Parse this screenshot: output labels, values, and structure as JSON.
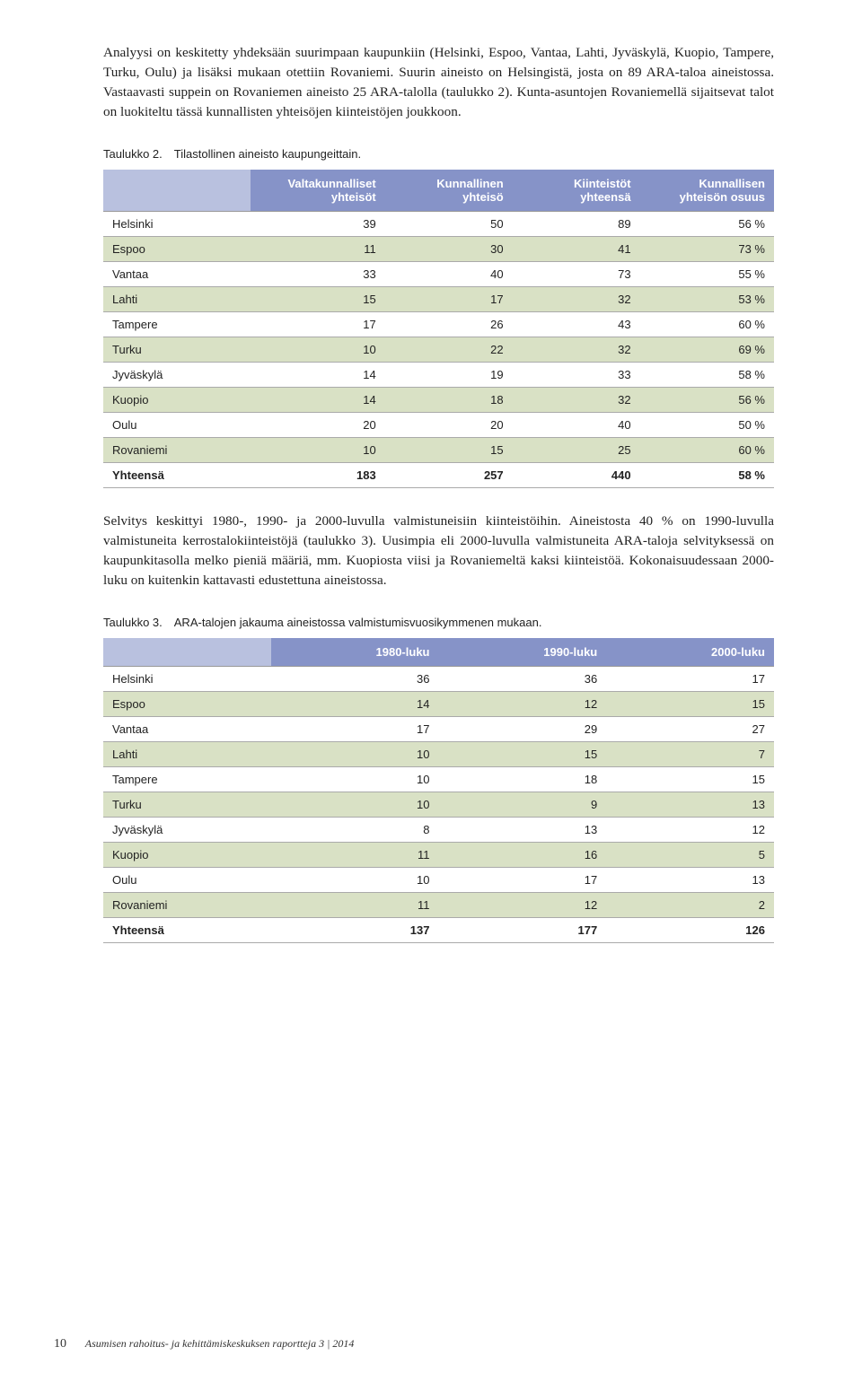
{
  "paragraphs": {
    "p1": "Analyysi on keskitetty yhdeksään suurimpaan kaupunkiin (Helsinki, Espoo, Vantaa, Lahti, Jyväskylä, Kuopio, Tampere, Turku, Oulu) ja lisäksi mukaan otettiin Rovaniemi. Suurin aineisto on Helsingistä, josta on 89 ARA-taloa aineistossa. Vastaavasti suppein on Rovaniemen aineisto 25 ARA-talolla (taulukko 2). Kunta-asuntojen Rovaniemellä sijaitsevat talot on luokiteltu tässä kunnallisten yhteisöjen kiinteistöjen joukkoon.",
    "p2": "Selvitys keskittyi 1980-, 1990- ja 2000-luvulla valmistuneisiin kiinteistöihin. Aineistosta 40 % on 1990-luvulla valmistuneita kerrostalokiinteistöjä (taulukko 3). Uusimpia eli 2000-luvulla valmistuneita ARA-taloja selvityksessä on kaupunkitasolla melko pieniä määriä, mm. Kuopiosta viisi ja Rovaniemeltä kaksi kiinteistöä. Kokonaisuudessaan 2000-luku on kuitenkin kattavasti edustettuna aineistossa."
  },
  "table2": {
    "caption": "Taulukko 2. Tilastollinen aineisto kaupungeittain.",
    "columns": [
      "",
      "Valtakunnalli­set yhteisöt",
      "Kunnallinen yhteisö",
      "Kiinteistöt yhteensä",
      "Kunnallisen yhteisön osuus"
    ],
    "header_bg": "#8693c8",
    "corner_bg": "#b9c1df",
    "row_bg_even": "#d9e1c5",
    "row_bg_odd": "#ffffff",
    "col_widths": [
      "22%",
      "20%",
      "19%",
      "19%",
      "20%"
    ],
    "rows": [
      [
        "Helsinki",
        "39",
        "50",
        "89",
        "56 %"
      ],
      [
        "Espoo",
        "11",
        "30",
        "41",
        "73 %"
      ],
      [
        "Vantaa",
        "33",
        "40",
        "73",
        "55 %"
      ],
      [
        "Lahti",
        "15",
        "17",
        "32",
        "53 %"
      ],
      [
        "Tampere",
        "17",
        "26",
        "43",
        "60 %"
      ],
      [
        "Turku",
        "10",
        "22",
        "32",
        "69 %"
      ],
      [
        "Jyväskylä",
        "14",
        "19",
        "33",
        "58 %"
      ],
      [
        "Kuopio",
        "14",
        "18",
        "32",
        "56 %"
      ],
      [
        "Oulu",
        "20",
        "20",
        "40",
        "50 %"
      ],
      [
        "Rovaniemi",
        "10",
        "15",
        "25",
        "60 %"
      ]
    ],
    "total_row": [
      "Yhteensä",
      "183",
      "257",
      "440",
      "58 %"
    ]
  },
  "table3": {
    "caption": "Taulukko 3. ARA-talojen jakauma aineistossa valmistumisvuosikymmenen mukaan.",
    "columns": [
      "",
      "1980-luku",
      "1990-luku",
      "2000-luku"
    ],
    "header_bg": "#8693c8",
    "corner_bg": "#b9c1df",
    "row_bg_even": "#d9e1c5",
    "row_bg_odd": "#ffffff",
    "col_widths": [
      "25%",
      "25%",
      "25%",
      "25%"
    ],
    "rows": [
      [
        "Helsinki",
        "36",
        "36",
        "17"
      ],
      [
        "Espoo",
        "14",
        "12",
        "15"
      ],
      [
        "Vantaa",
        "17",
        "29",
        "27"
      ],
      [
        "Lahti",
        "10",
        "15",
        "7"
      ],
      [
        "Tampere",
        "10",
        "18",
        "15"
      ],
      [
        "Turku",
        "10",
        "9",
        "13"
      ],
      [
        "Jyväskylä",
        "8",
        "13",
        "12"
      ],
      [
        "Kuopio",
        "11",
        "16",
        "5"
      ],
      [
        "Oulu",
        "10",
        "17",
        "13"
      ],
      [
        "Rovaniemi",
        "11",
        "12",
        "2"
      ]
    ],
    "total_row": [
      "Yhteensä",
      "137",
      "177",
      "126"
    ]
  },
  "footer": {
    "pagenum": "10",
    "text": "Asumisen rahoitus- ja kehittämiskeskuksen raportteja  3 | 2014"
  }
}
